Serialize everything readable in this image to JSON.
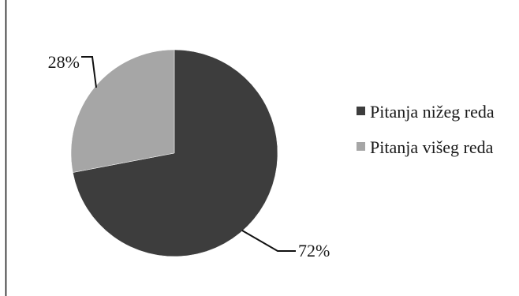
{
  "chart_data": {
    "type": "pie",
    "categories": [
      "Pitanja nižeg reda",
      "Pitanja višeg reda"
    ],
    "values": [
      72,
      28
    ],
    "labels": [
      "72%",
      "28%"
    ],
    "colors": [
      "#3d3d3d",
      "#a6a6a6"
    ],
    "legend_position": "right",
    "title": ""
  }
}
